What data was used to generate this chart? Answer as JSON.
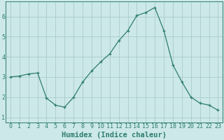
{
  "x": [
    0,
    1,
    2,
    3,
    4,
    5,
    6,
    7,
    8,
    9,
    10,
    11,
    12,
    13,
    14,
    15,
    16,
    17,
    18,
    19,
    20,
    21,
    22,
    23
  ],
  "y": [
    3.0,
    3.05,
    3.15,
    3.2,
    1.95,
    1.6,
    1.5,
    2.0,
    2.75,
    3.3,
    3.75,
    4.15,
    4.8,
    5.3,
    6.05,
    6.2,
    6.45,
    5.3,
    3.6,
    2.75,
    2.0,
    1.7,
    1.6,
    1.35
  ],
  "line_color": "#2e7d6e",
  "marker": "+",
  "bg_color": "#cce8e8",
  "grid_color": "#aacccc",
  "axis_color": "#2e7d6e",
  "xlabel": "Humidex (Indice chaleur)",
  "ylim": [
    0.75,
    6.75
  ],
  "xlim": [
    -0.5,
    23.5
  ],
  "yticks": [
    1,
    2,
    3,
    4,
    5,
    6
  ],
  "xticks": [
    0,
    1,
    2,
    3,
    4,
    5,
    6,
    7,
    8,
    9,
    10,
    11,
    12,
    13,
    14,
    15,
    16,
    17,
    18,
    19,
    20,
    21,
    22,
    23
  ],
  "xlabel_fontsize": 7.5,
  "tick_fontsize": 6.0
}
